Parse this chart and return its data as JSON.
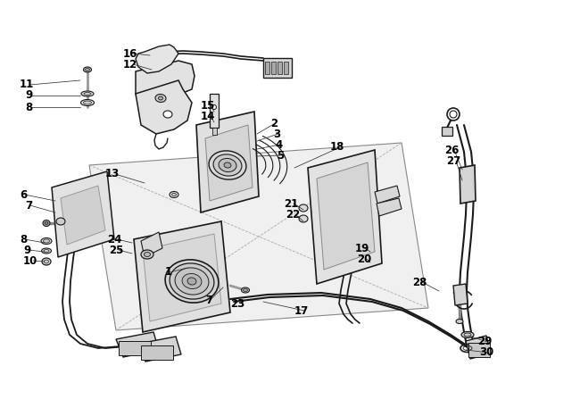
{
  "bg_color": "#ffffff",
  "figure_width": 6.5,
  "figure_height": 4.66,
  "dpi": 100,
  "line_color": "#1a1a1a",
  "text_color": "#000000",
  "font_size": 8.5,
  "callouts": [
    [
      "11",
      22,
      95,
      90,
      90
    ],
    [
      "9",
      28,
      107,
      90,
      107
    ],
    [
      "8",
      28,
      120,
      90,
      120
    ],
    [
      "16",
      138,
      60,
      168,
      62
    ],
    [
      "12",
      138,
      72,
      170,
      78
    ],
    [
      "15",
      225,
      118,
      240,
      125
    ],
    [
      "14",
      225,
      130,
      240,
      137
    ],
    [
      "2",
      303,
      138,
      288,
      150
    ],
    [
      "3",
      306,
      150,
      288,
      158
    ],
    [
      "4",
      308,
      162,
      288,
      167
    ],
    [
      "5",
      310,
      174,
      288,
      175
    ],
    [
      "13",
      118,
      195,
      162,
      205
    ],
    [
      "6",
      22,
      218,
      62,
      225
    ],
    [
      "7",
      28,
      230,
      62,
      238
    ],
    [
      "1",
      185,
      305,
      210,
      300
    ],
    [
      "18",
      370,
      165,
      330,
      188
    ],
    [
      "21",
      318,
      228,
      340,
      235
    ],
    [
      "22",
      320,
      240,
      340,
      248
    ],
    [
      "19",
      398,
      278,
      415,
      282
    ],
    [
      "20",
      400,
      290,
      415,
      294
    ],
    [
      "8",
      22,
      268,
      50,
      272
    ],
    [
      "9",
      26,
      280,
      50,
      282
    ],
    [
      "10",
      26,
      292,
      50,
      293
    ],
    [
      "24",
      120,
      268,
      148,
      272
    ],
    [
      "25",
      122,
      280,
      148,
      284
    ],
    [
      "7",
      230,
      336,
      250,
      322
    ],
    [
      "23",
      258,
      340,
      268,
      335
    ],
    [
      "17",
      330,
      348,
      295,
      338
    ],
    [
      "26",
      498,
      168,
      518,
      190
    ],
    [
      "27",
      500,
      180,
      518,
      202
    ],
    [
      "28",
      462,
      316,
      492,
      326
    ],
    [
      "29",
      535,
      383,
      525,
      376
    ],
    [
      "30",
      537,
      395,
      522,
      392
    ]
  ]
}
